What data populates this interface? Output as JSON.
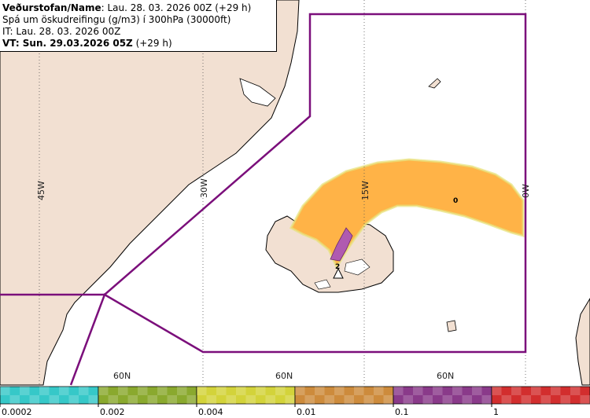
{
  "header": {
    "agency_label": "Veðurstofan/Name",
    "agency_value": ": Lau. 28. 03. 2026 00Z (+29 h)",
    "product": "Spá um öskudreifingu (g/m3) í 300hPa (30000ft)",
    "issue_time": "IT: Lau. 28. 03. 2026 00Z",
    "valid_label": "VT: Sun. 29.03.2026 05Z",
    "valid_offset": " (+29 h)"
  },
  "grid_labels": {
    "lon": [
      "45W",
      "30W",
      "15W",
      "0W"
    ],
    "lat": [
      "60N",
      "60N",
      "60N"
    ]
  },
  "plume_marker": "0",
  "volcano_marker": "2",
  "legend": {
    "ticks": [
      "0.0002",
      "0.002",
      "0.004",
      "0.01",
      "0.1",
      "1"
    ],
    "colors": [
      "#36c8c8",
      "#8aa92e",
      "#d3d33a",
      "#cd8b3c",
      "#8a3a8a",
      "#d22e2e"
    ]
  },
  "colors": {
    "land": "#f2e0d2",
    "sea": "#ffffff",
    "boundary": "#7b0f7b",
    "plume_orange": "#ffb347",
    "plume_purple": "#b05ab0"
  }
}
